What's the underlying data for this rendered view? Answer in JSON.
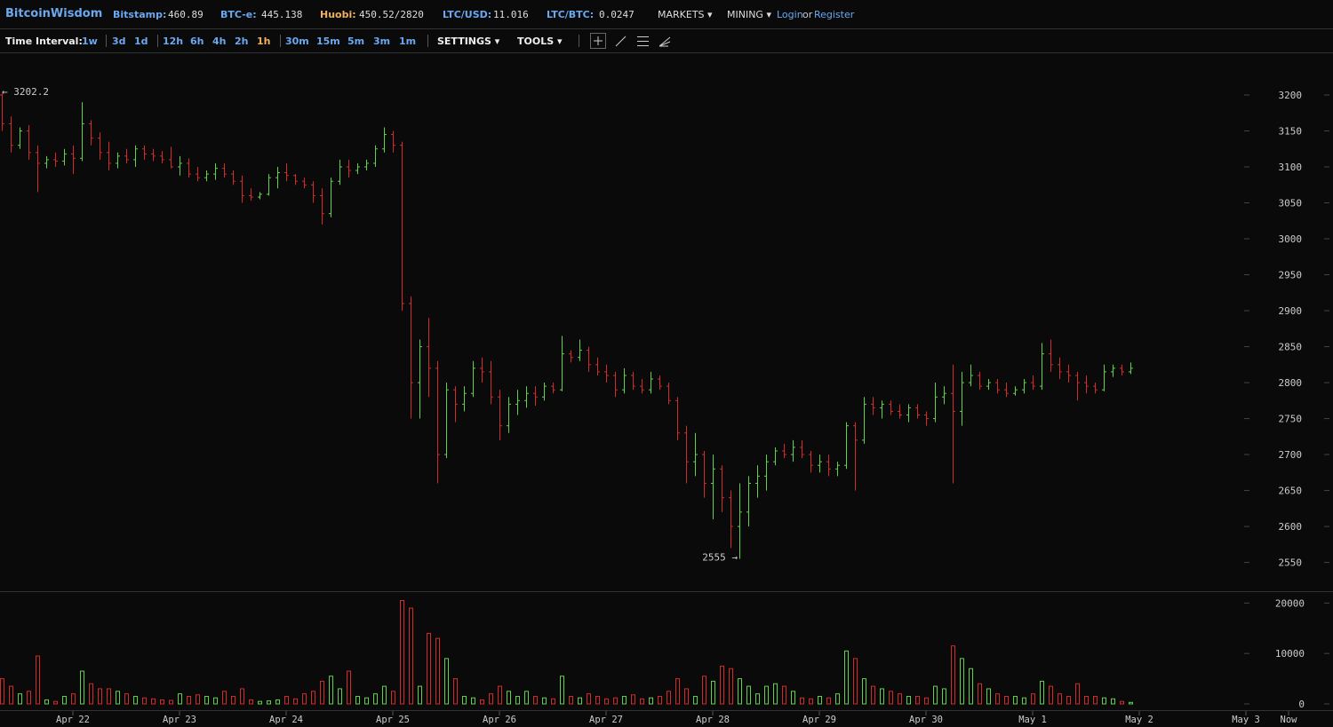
{
  "header": {
    "brand": "BitcoinWisdom",
    "tickers": [
      {
        "label": "Bitstamp:",
        "price": "460.89",
        "color": "#6aa8f0"
      },
      {
        "label": "BTC-e:",
        "price": "445.138",
        "color": "#6aa8f0"
      },
      {
        "label": "Huobi:",
        "price": "450.52/2820",
        "color": "#f0b060"
      },
      {
        "label": "LTC/USD:",
        "price": "11.016",
        "color": "#6aa8f0"
      },
      {
        "label": "LTC/BTC:",
        "price": "0.0247",
        "color": "#6aa8f0"
      }
    ],
    "menus": [
      "MARKETS",
      "MINING"
    ],
    "login": "Login",
    "or": "or",
    "register": "Register"
  },
  "toolbar": {
    "interval_label": "Time Interval:",
    "intervals": [
      [
        "1w"
      ],
      [
        "3d",
        "1d"
      ],
      [
        "12h",
        "6h",
        "4h",
        "2h",
        "1h"
      ],
      [
        "30m",
        "15m",
        "5m",
        "3m",
        "1m"
      ]
    ],
    "active": {
      "group": 2,
      "item": 4
    },
    "settings": "SETTINGS",
    "tools": "TOOLS"
  },
  "chart_data": {
    "type": "candlestick",
    "up_color": "#5fd24a",
    "down_color": "#d42a2a",
    "open": [
      3200,
      3160,
      3130,
      3150,
      3120,
      3105,
      3110,
      3108,
      3118,
      3112,
      3160,
      3140,
      3120,
      3105,
      3115,
      3110,
      3125,
      3118,
      3115,
      3110,
      3100,
      3105,
      3090,
      3085,
      3090,
      3098,
      3090,
      3080,
      3060,
      3058,
      3062,
      3085,
      3092,
      3088,
      3080,
      3075,
      3060,
      3035,
      3080,
      3100,
      3095,
      3100,
      3105,
      3125,
      3145,
      3130,
      2910,
      2800,
      2850,
      2820,
      2700,
      2790,
      2770,
      2785,
      2820,
      2815,
      2780,
      2740,
      2770,
      2775,
      2785,
      2780,
      2795,
      2790,
      2840,
      2835,
      2845,
      2825,
      2815,
      2810,
      2790,
      2810,
      2795,
      2790,
      2805,
      2795,
      2775,
      2730,
      2690,
      2700,
      2660,
      2680,
      2640,
      2600,
      2620,
      2660,
      2670,
      2690,
      2705,
      2700,
      2710,
      2700,
      2685,
      2690,
      2680,
      2685,
      2740,
      2720,
      2770,
      2765,
      2770,
      2760,
      2755,
      2765,
      2755,
      2750,
      2780,
      2785,
      2760,
      2800,
      2810,
      2795,
      2800,
      2790,
      2785,
      2790,
      2800,
      2795,
      2840,
      2825,
      2815,
      2810,
      2800,
      2795,
      2790,
      2815,
      2820,
      2815
    ],
    "high": [
      3202.2,
      3170,
      3155,
      3158,
      3130,
      3115,
      3120,
      3125,
      3130,
      3190,
      3165,
      3148,
      3135,
      3120,
      3125,
      3130,
      3130,
      3125,
      3122,
      3128,
      3115,
      3112,
      3100,
      3095,
      3105,
      3105,
      3095,
      3088,
      3070,
      3065,
      3090,
      3100,
      3105,
      3090,
      3085,
      3080,
      3070,
      3085,
      3110,
      3110,
      3105,
      3110,
      3130,
      3155,
      3150,
      3135,
      2920,
      2860,
      2890,
      2830,
      2800,
      2795,
      2795,
      2830,
      2835,
      2830,
      2790,
      2780,
      2790,
      2795,
      2795,
      2800,
      2800,
      2865,
      2845,
      2860,
      2850,
      2835,
      2825,
      2815,
      2820,
      2815,
      2805,
      2815,
      2810,
      2800,
      2780,
      2740,
      2730,
      2705,
      2700,
      2685,
      2650,
      2660,
      2670,
      2685,
      2700,
      2710,
      2715,
      2720,
      2720,
      2705,
      2700,
      2700,
      2690,
      2745,
      2745,
      2780,
      2780,
      2775,
      2775,
      2770,
      2770,
      2770,
      2760,
      2800,
      2795,
      2825,
      2815,
      2825,
      2815,
      2805,
      2805,
      2800,
      2795,
      2805,
      2810,
      2855,
      2860,
      2835,
      2825,
      2815,
      2810,
      2800,
      2825,
      2825,
      2825,
      2828
    ],
    "low": [
      3150,
      3120,
      3125,
      3110,
      3065,
      3098,
      3100,
      3102,
      3090,
      3108,
      3130,
      3110,
      3095,
      3098,
      3105,
      3100,
      3110,
      3108,
      3105,
      3098,
      3088,
      3085,
      3080,
      3080,
      3082,
      3085,
      3075,
      3050,
      3053,
      3055,
      3060,
      3070,
      3080,
      3075,
      3070,
      3050,
      3020,
      3030,
      3075,
      3085,
      3090,
      3095,
      3100,
      3120,
      3120,
      2900,
      2750,
      2750,
      2780,
      2660,
      2695,
      2745,
      2760,
      2780,
      2800,
      2770,
      2720,
      2730,
      2755,
      2765,
      2768,
      2775,
      2785,
      2788,
      2828,
      2830,
      2815,
      2810,
      2800,
      2780,
      2785,
      2790,
      2785,
      2785,
      2790,
      2770,
      2720,
      2660,
      2670,
      2640,
      2610,
      2620,
      2570,
      2555,
      2600,
      2640,
      2650,
      2685,
      2695,
      2690,
      2695,
      2675,
      2675,
      2670,
      2670,
      2680,
      2650,
      2715,
      2755,
      2750,
      2755,
      2750,
      2745,
      2750,
      2740,
      2745,
      2770,
      2660,
      2740,
      2795,
      2790,
      2790,
      2785,
      2780,
      2782,
      2785,
      2790,
      2790,
      2815,
      2805,
      2800,
      2775,
      2785,
      2785,
      2788,
      2808,
      2810,
      2812
    ],
    "close": [
      3160,
      3130,
      3150,
      3120,
      3105,
      3110,
      3108,
      3118,
      3112,
      3160,
      3140,
      3120,
      3105,
      3115,
      3110,
      3125,
      3118,
      3115,
      3110,
      3100,
      3105,
      3090,
      3085,
      3090,
      3098,
      3090,
      3080,
      3060,
      3058,
      3062,
      3085,
      3092,
      3088,
      3080,
      3075,
      3060,
      3035,
      3080,
      3100,
      3095,
      3100,
      3105,
      3125,
      3145,
      3130,
      2910,
      2800,
      2850,
      2820,
      2700,
      2790,
      2770,
      2785,
      2820,
      2815,
      2780,
      2740,
      2770,
      2775,
      2785,
      2780,
      2795,
      2790,
      2840,
      2835,
      2845,
      2825,
      2815,
      2810,
      2790,
      2810,
      2795,
      2790,
      2805,
      2795,
      2775,
      2730,
      2690,
      2700,
      2660,
      2680,
      2640,
      2600,
      2620,
      2660,
      2670,
      2690,
      2705,
      2700,
      2710,
      2700,
      2685,
      2690,
      2680,
      2685,
      2740,
      2720,
      2770,
      2765,
      2770,
      2760,
      2755,
      2765,
      2755,
      2750,
      2780,
      2785,
      2760,
      2800,
      2810,
      2795,
      2800,
      2790,
      2785,
      2790,
      2800,
      2795,
      2840,
      2825,
      2815,
      2810,
      2800,
      2795,
      2790,
      2815,
      2820,
      2815,
      2820
    ],
    "volume": [
      5000,
      3500,
      2000,
      2500,
      9500,
      800,
      500,
      1500,
      2000,
      6500,
      4000,
      3000,
      3000,
      2500,
      2000,
      1500,
      1200,
      1000,
      800,
      700,
      2000,
      1500,
      1800,
      1500,
      1200,
      2500,
      1500,
      3000,
      800,
      500,
      600,
      800,
      1500,
      1000,
      2000,
      2500,
      4500,
      5500,
      3000,
      6500,
      1500,
      1200,
      2000,
      3500,
      2500,
      20500,
      19000,
      3500,
      14000,
      13000,
      9000,
      5000,
      1500,
      1200,
      800,
      2000,
      3500,
      2500,
      1500,
      2500,
      1500,
      1200,
      1000,
      5500,
      1500,
      1200,
      2000,
      1500,
      1000,
      1200,
      1500,
      1800,
      1000,
      1200,
      1500,
      2500,
      5000,
      3000,
      1500,
      5500,
      4500,
      7500,
      7000,
      5000,
      3500,
      2000,
      3500,
      4000,
      3500,
      2500,
      1200,
      1000,
      1500,
      1200,
      2000,
      10500,
      9000,
      5000,
      3500,
      3000,
      2500,
      2000,
      1500,
      1500,
      1200,
      3500,
      3000,
      11500,
      9000,
      7000,
      4000,
      3000,
      2000,
      1500,
      1500,
      1200,
      2000,
      4500,
      3500,
      2000,
      1500,
      4000,
      1500,
      1500,
      1200,
      1000,
      500,
      300
    ],
    "high_label": "← 3202.2",
    "low_label": "2555 →",
    "xlim": [
      -0.2,
      149.8
    ],
    "xticks": [
      {
        "value": 8,
        "label": "Apr 22"
      },
      {
        "value": 20,
        "label": "Apr 23"
      },
      {
        "value": 32,
        "label": "Apr 24"
      },
      {
        "value": 44,
        "label": "Apr 25"
      },
      {
        "value": 56,
        "label": "Apr 26"
      },
      {
        "value": 68,
        "label": "Apr 27"
      },
      {
        "value": 80,
        "label": "Apr 28"
      },
      {
        "value": 92,
        "label": "Apr 29"
      },
      {
        "value": 104,
        "label": "Apr 30"
      },
      {
        "value": 116,
        "label": "May 1"
      },
      {
        "value": 128,
        "label": "May 2"
      },
      {
        "value": 140,
        "label": "May 3"
      },
      {
        "value": 144.8,
        "label": "Now"
      }
    ],
    "ylim": [
      2510,
      3258
    ],
    "yticks": [
      2550,
      2600,
      2650,
      2700,
      2750,
      2800,
      2850,
      2900,
      2950,
      3000,
      3050,
      3100,
      3150,
      3200
    ],
    "volume_ylim": [
      0,
      22000
    ],
    "volume_yticks": [
      0,
      10000,
      20000
    ]
  }
}
